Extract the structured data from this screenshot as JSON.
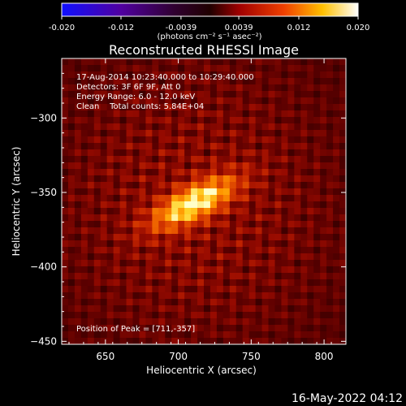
{
  "title": "Reconstructed RHESSI Image",
  "info": {
    "line1": "17-Aug-2014 10:23:40.000 to 10:29:40.000",
    "line2": "Detectors: 3F 6F 9F, Att 0",
    "line3": "Energy Range: 6.0 - 12.0 keV",
    "line4": "Clean    Total counts: 5.84E+04",
    "peak": "Position of Peak = [711,-357]"
  },
  "timestamp": "16-May-2022 04:12",
  "colorbar": {
    "min": -0.02,
    "max": 0.02,
    "tick_labels": [
      "-0.020",
      "-0.012",
      "-0.0039",
      "0.0039",
      "0.012",
      "0.020"
    ],
    "tick_values": [
      -0.02,
      -0.012,
      -0.0039,
      0.0039,
      0.012,
      0.02
    ],
    "unit_label": "(photons cm⁻² s⁻¹ asec⁻²)"
  },
  "colors": {
    "background": "#000000",
    "foreground": "#ffffff",
    "colormap": [
      "#0000ff",
      "#40006a",
      "#000000",
      "#8b0000",
      "#e03000",
      "#ffa000",
      "#ffff80",
      "#ffffff"
    ]
  },
  "chart_data": {
    "type": "heatmap",
    "title": "Reconstructed RHESSI Image",
    "xlabel": "Heliocentric X (arcsec)",
    "ylabel": "Heliocentric Y (arcsec)",
    "xlim": [
      620,
      815
    ],
    "ylim": [
      -452,
      -260
    ],
    "x_ticks": [
      650,
      700,
      750,
      800
    ],
    "y_ticks": [
      -300,
      -350,
      -400,
      -450
    ],
    "peak": {
      "x": 711,
      "y": -357
    },
    "colorbar_range": [
      -0.02,
      0.02
    ]
  }
}
